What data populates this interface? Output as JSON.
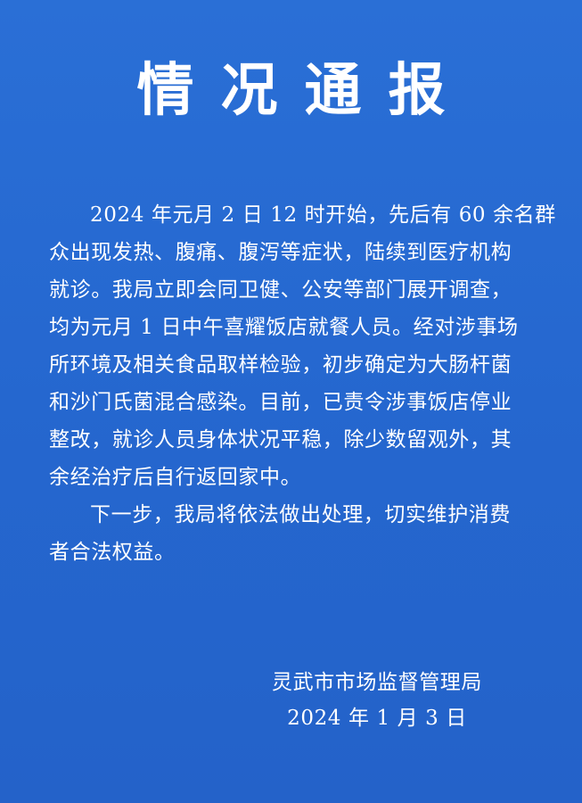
{
  "notice": {
    "title": "情况通报",
    "paragraph1_lines": [
      "2024 年元月 2 日 12 时开始，先后有 60 余名群",
      "众出现发热、腹痛、腹泻等症状，陆续到医疗机构",
      "就诊。我局立即会同卫健、公安等部门展开调查，",
      "均为元月 1 日中午喜耀饭店就餐人员。经对涉事场",
      "所环境及相关食品取样检验，初步确定为大肠杆菌",
      "和沙门氏菌混合感染。目前，已责令涉事饭店停业",
      "整改，就诊人员身体状况平稳，除少数留观外，其",
      "余经治疗后自行返回家中。"
    ],
    "paragraph2_lines": [
      "下一步，我局将依法做出处理，切实维护消费",
      "者合法权益。"
    ],
    "signature": {
      "issuer": "灵武市市场监督管理局",
      "date": "2024 年 1 月 3 日"
    }
  }
}
